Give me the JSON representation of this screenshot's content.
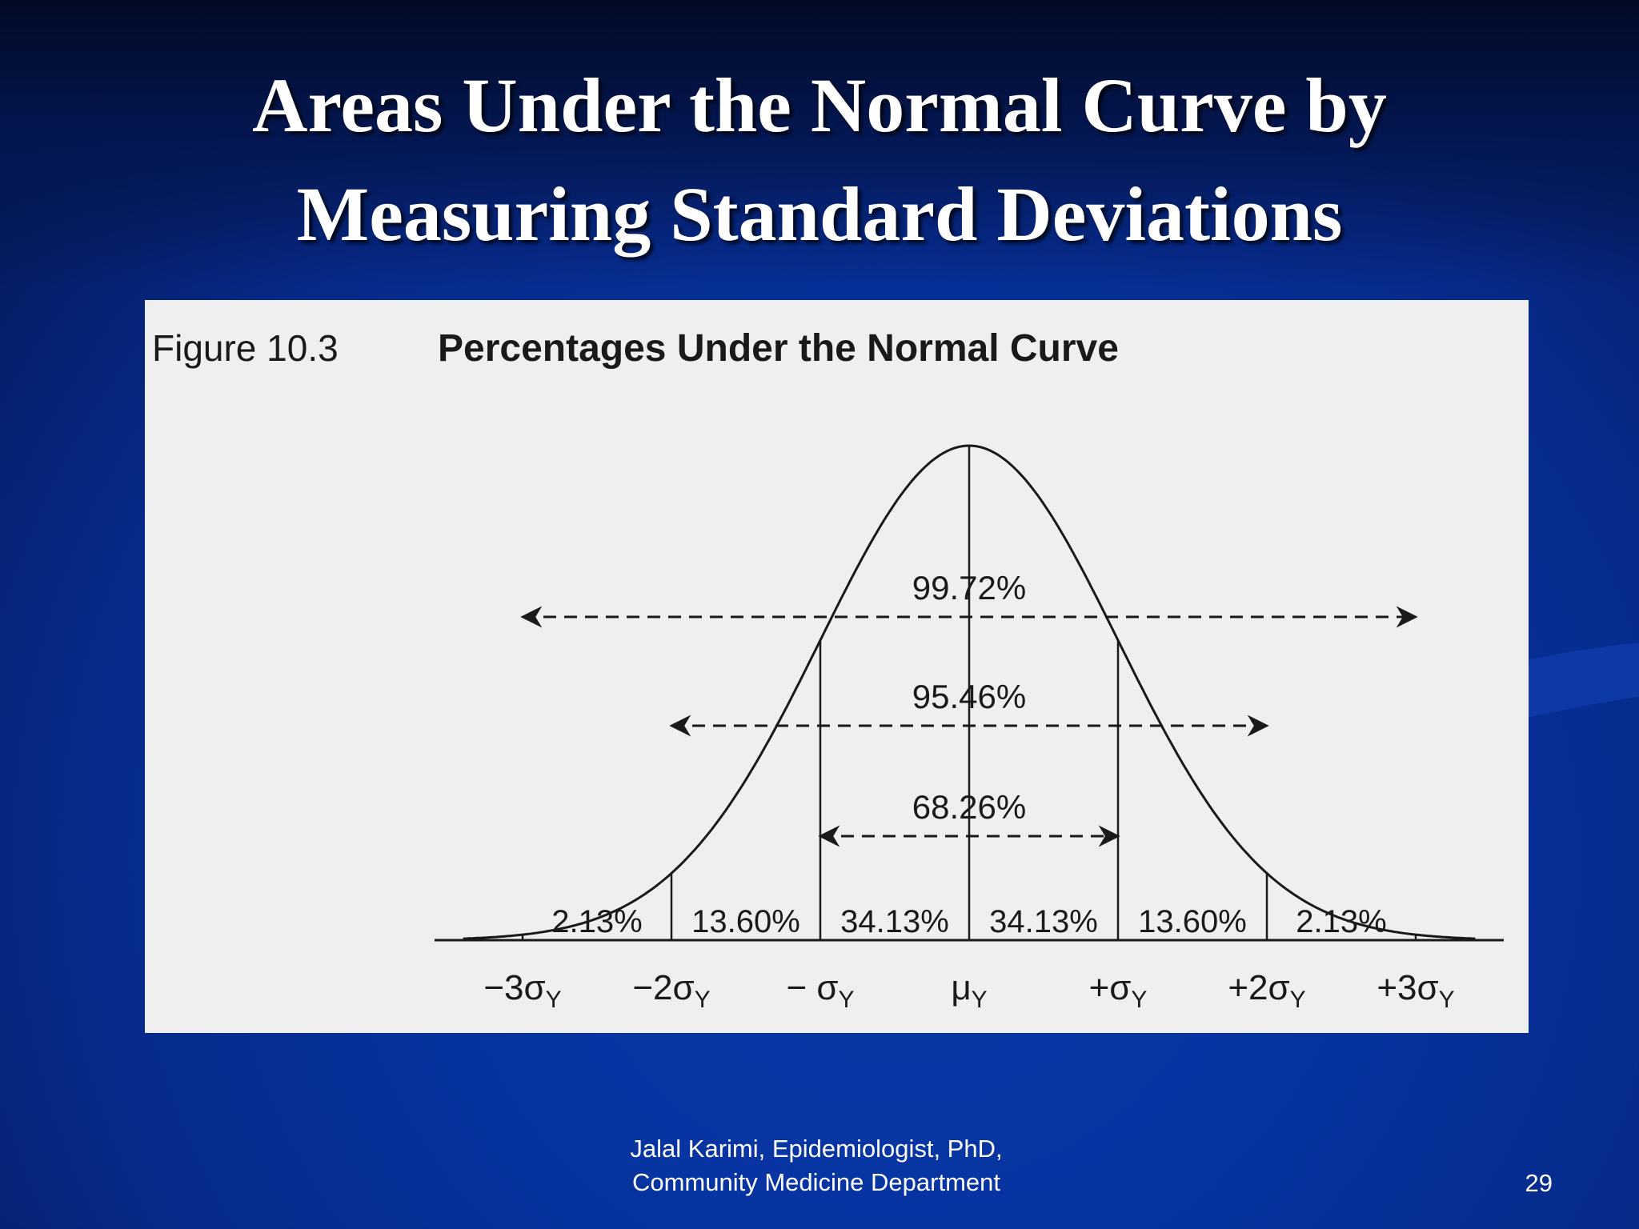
{
  "slide": {
    "title_line1": "Areas Under the Normal Curve by",
    "title_line2": "Measuring Standard Deviations",
    "footer_line1": "Jalal Karimi, Epidemiologist, PhD,",
    "footer_line2": "Community Medicine Department",
    "page_number": "29"
  },
  "figure": {
    "number_label": "Figure 10.3",
    "title": "Percentages Under the Normal Curve",
    "segments": [
      "2.13%",
      "13.60%",
      "34.13%",
      "34.13%",
      "13.60%",
      "2.13%"
    ],
    "axis_labels": [
      "−3σ",
      "−2σ",
      "− σ",
      "μ",
      "+σ",
      "+2σ",
      "+3σ"
    ],
    "axis_subscript": "Y",
    "ranges": [
      {
        "label": "99.72%",
        "from_sd": -3,
        "to_sd": 3
      },
      {
        "label": "95.46%",
        "from_sd": -2,
        "to_sd": 2
      },
      {
        "label": "68.26%",
        "from_sd": -1,
        "to_sd": 1
      }
    ]
  },
  "colors": {
    "background": "#0633a0",
    "panel": "#f0eff0",
    "ink": "#1a1a1a",
    "text": "#ffffff"
  }
}
